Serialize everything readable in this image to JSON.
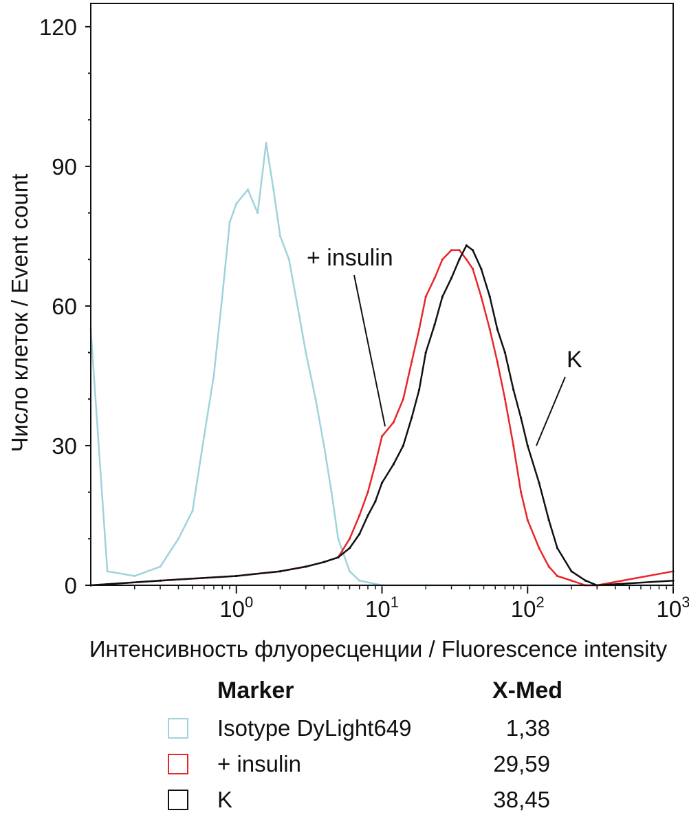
{
  "chart_data": {
    "type": "histogram",
    "ylabel": "Число клеток / Event count",
    "xlabel": "Интенсивность флуоресценции / Fluorescence intensity",
    "xscale": "log",
    "xlim": [
      0.1,
      1000
    ],
    "ylim": [
      0,
      125
    ],
    "yticks": [
      0,
      30,
      60,
      90,
      120
    ],
    "xticks": [
      {
        "value": 1,
        "base": "10",
        "exp": "0"
      },
      {
        "value": 10,
        "base": "10",
        "exp": "1"
      },
      {
        "value": 100,
        "base": "10",
        "exp": "2"
      },
      {
        "value": 1000,
        "base": "10",
        "exp": "3"
      }
    ],
    "series": [
      {
        "name": "Isotype DyLight649",
        "color": "#9fd3dc",
        "x": [
          0.1,
          0.13,
          0.2,
          0.3,
          0.4,
          0.5,
          0.6,
          0.7,
          0.8,
          0.9,
          1.0,
          1.2,
          1.4,
          1.6,
          1.8,
          2.0,
          2.3,
          2.7,
          3.0,
          3.5,
          4.0,
          4.5,
          5.0,
          6.0,
          7.0,
          10,
          20,
          40,
          100,
          1000
        ],
        "values": [
          55,
          3,
          2,
          4,
          10,
          16,
          32,
          45,
          62,
          78,
          82,
          85,
          80,
          95,
          85,
          75,
          70,
          58,
          50,
          40,
          30,
          20,
          10,
          3,
          1,
          0,
          0,
          0,
          0,
          0
        ]
      },
      {
        "name": "+ insulin",
        "color": "#e8262a",
        "x": [
          0.1,
          0.3,
          1,
          2,
          3,
          4,
          5,
          6,
          7,
          8,
          9,
          10,
          12,
          14,
          16,
          18,
          20,
          23,
          26,
          30,
          34,
          38,
          42,
          48,
          55,
          62,
          70,
          80,
          90,
          100,
          120,
          140,
          160,
          200,
          250,
          300,
          1000
        ],
        "values": [
          0,
          1,
          2,
          3,
          4,
          5,
          6,
          10,
          15,
          20,
          26,
          32,
          35,
          40,
          48,
          55,
          62,
          66,
          70,
          72,
          72,
          70,
          68,
          62,
          55,
          48,
          40,
          30,
          20,
          14,
          8,
          4,
          2,
          1,
          0,
          0,
          3
        ]
      },
      {
        "name": "K",
        "color": "#111111",
        "x": [
          0.1,
          0.3,
          1,
          2,
          3,
          4,
          5,
          6,
          7,
          8,
          9,
          10,
          12,
          14,
          16,
          18,
          20,
          23,
          26,
          30,
          34,
          38,
          42,
          48,
          55,
          62,
          70,
          80,
          90,
          100,
          120,
          140,
          160,
          200,
          250,
          300,
          1000
        ],
        "values": [
          0,
          1,
          2,
          3,
          4,
          5,
          6,
          8,
          11,
          15,
          18,
          22,
          26,
          30,
          36,
          42,
          50,
          56,
          62,
          66,
          70,
          73,
          72,
          68,
          62,
          55,
          50,
          42,
          36,
          30,
          22,
          14,
          8,
          3,
          1,
          0,
          1
        ]
      }
    ],
    "annotations": [
      {
        "text": "+ insulin"
      },
      {
        "text": "K"
      }
    ],
    "legend": {
      "header_marker": "Marker",
      "header_value": "X-Med",
      "rows": [
        {
          "name": "Isotype DyLight649",
          "value": "1,38",
          "color": "#9fd3dc"
        },
        {
          "name": "+ insulin",
          "value": "29,59",
          "color": "#e8262a"
        },
        {
          "name": "K",
          "value": "38,45",
          "color": "#111111"
        }
      ]
    }
  }
}
